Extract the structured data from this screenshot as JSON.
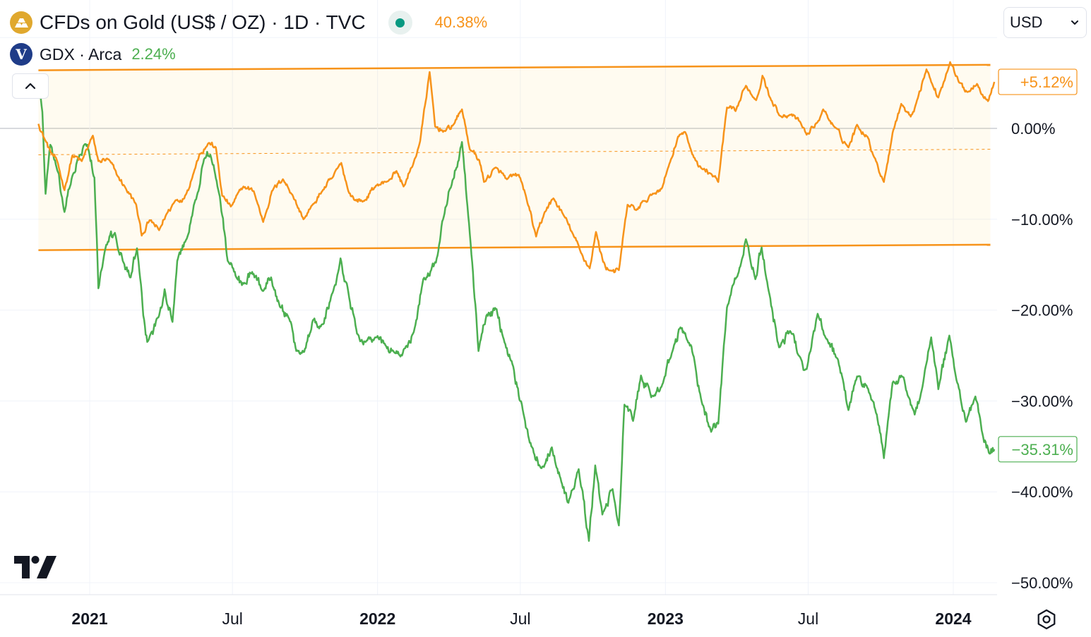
{
  "legend": {
    "series1_title": "CFDs on Gold (US$ / OZ) · 1D · TVC",
    "series1_change": "40.38%",
    "series2_title": "GDX · Arca",
    "series2_change": "2.24%",
    "series2_icon_letter": "V"
  },
  "currency": {
    "label": "USD"
  },
  "icons": {
    "series1": "gold-bars-icon",
    "series2": "vaneck-icon",
    "collapse": "chevron-up-icon",
    "currency_dropdown": "chevron-down-icon",
    "logo": "tradingview-logo-icon",
    "settings": "settings-gear-icon"
  },
  "colors": {
    "gold": "#f7931a",
    "gdx": "#4caf50",
    "status_dot": "#089981"
  },
  "chart_data": {
    "type": "line",
    "y_unit": "% change",
    "y_ticks": [
      "0.00%",
      "−10.00%",
      "−20.00%",
      "−30.00%",
      "−40.00%",
      "−50.00%"
    ],
    "y_tick_values": [
      0,
      -10,
      -20,
      -30,
      -40,
      -50
    ],
    "ylim": [
      -51,
      7
    ],
    "x_range": [
      "2020-10-28",
      "2024-02-22"
    ],
    "x_ticks": [
      {
        "label": "2021",
        "date": "2021-01-01",
        "bold": true
      },
      {
        "label": "Jul",
        "date": "2021-07-01",
        "bold": false
      },
      {
        "label": "2022",
        "date": "2022-01-01",
        "bold": true
      },
      {
        "label": "Jul",
        "date": "2022-07-01",
        "bold": false
      },
      {
        "label": "2023",
        "date": "2023-01-01",
        "bold": true
      },
      {
        "label": "Jul",
        "date": "2023-07-01",
        "bold": false
      },
      {
        "label": "2024",
        "date": "2024-01-01",
        "bold": true
      }
    ],
    "last_value_labels": [
      {
        "series": "CFDs on Gold",
        "text": "+5.12%",
        "value": 5.12
      },
      {
        "series": "GDX",
        "text": "−35.31%",
        "value": -35.31
      }
    ],
    "channel": {
      "upper": {
        "start": [
          "2020-10-28",
          6.4
        ],
        "end": [
          "2024-02-17",
          7.0
        ]
      },
      "lower": {
        "start": [
          "2020-10-28",
          -13.4
        ],
        "end": [
          "2024-02-17",
          -12.8
        ]
      },
      "mid_value": -2.9
    },
    "grid": true,
    "series": [
      {
        "name": "CFDs on Gold",
        "points": [
          [
            "2020-10-28",
            0.5
          ],
          [
            "2020-11-05",
            -1.2
          ],
          [
            "2020-11-12",
            -2.5
          ],
          [
            "2020-11-20",
            -3.4
          ],
          [
            "2020-11-30",
            -6.8
          ],
          [
            "2020-12-10",
            -3.0
          ],
          [
            "2020-12-22",
            -3.6
          ],
          [
            "2021-01-05",
            -0.8
          ],
          [
            "2021-01-12",
            -3.6
          ],
          [
            "2021-01-25",
            -3.4
          ],
          [
            "2021-02-05",
            -5.2
          ],
          [
            "2021-02-15",
            -6.5
          ],
          [
            "2021-03-01",
            -8.4
          ],
          [
            "2021-03-08",
            -11.8
          ],
          [
            "2021-03-18",
            -10.1
          ],
          [
            "2021-03-30",
            -11.2
          ],
          [
            "2021-04-08",
            -9.5
          ],
          [
            "2021-04-20",
            -7.9
          ],
          [
            "2021-05-01",
            -7.7
          ],
          [
            "2021-05-12",
            -5.1
          ],
          [
            "2021-05-20",
            -2.9
          ],
          [
            "2021-06-01",
            -1.6
          ],
          [
            "2021-06-10",
            -2.1
          ],
          [
            "2021-06-18",
            -7.4
          ],
          [
            "2021-06-29",
            -8.6
          ],
          [
            "2021-07-15",
            -6.4
          ],
          [
            "2021-07-28",
            -6.9
          ],
          [
            "2021-08-09",
            -10.3
          ],
          [
            "2021-08-20",
            -6.9
          ],
          [
            "2021-09-03",
            -5.6
          ],
          [
            "2021-09-15",
            -7.3
          ],
          [
            "2021-09-29",
            -10.0
          ],
          [
            "2021-10-12",
            -8.3
          ],
          [
            "2021-10-22",
            -7.0
          ],
          [
            "2021-11-05",
            -5.4
          ],
          [
            "2021-11-16",
            -3.8
          ],
          [
            "2021-11-25",
            -6.9
          ],
          [
            "2021-12-03",
            -7.9
          ],
          [
            "2021-12-15",
            -8.0
          ],
          [
            "2021-12-30",
            -6.3
          ],
          [
            "2022-01-12",
            -5.9
          ],
          [
            "2022-01-25",
            -4.7
          ],
          [
            "2022-02-03",
            -6.4
          ],
          [
            "2022-02-15",
            -4.0
          ],
          [
            "2022-02-24",
            -1.4
          ],
          [
            "2022-03-08",
            6.2
          ],
          [
            "2022-03-15",
            0.2
          ],
          [
            "2022-03-28",
            -0.3
          ],
          [
            "2022-04-08",
            0.5
          ],
          [
            "2022-04-18",
            2.1
          ],
          [
            "2022-04-28",
            -2.3
          ],
          [
            "2022-05-10",
            -3.5
          ],
          [
            "2022-05-16",
            -5.9
          ],
          [
            "2022-05-31",
            -4.3
          ],
          [
            "2022-06-14",
            -5.6
          ],
          [
            "2022-06-29",
            -5.1
          ],
          [
            "2022-07-08",
            -7.4
          ],
          [
            "2022-07-21",
            -11.9
          ],
          [
            "2022-08-01",
            -9.2
          ],
          [
            "2022-08-12",
            -7.7
          ],
          [
            "2022-08-24",
            -9.4
          ],
          [
            "2022-09-05",
            -11.5
          ],
          [
            "2022-09-16",
            -13.7
          ],
          [
            "2022-09-27",
            -15.4
          ],
          [
            "2022-10-05",
            -11.4
          ],
          [
            "2022-10-14",
            -14.7
          ],
          [
            "2022-10-21",
            -15.6
          ],
          [
            "2022-11-03",
            -15.6
          ],
          [
            "2022-11-14",
            -8.4
          ],
          [
            "2022-11-25",
            -9.0
          ],
          [
            "2022-12-05",
            -8.0
          ],
          [
            "2022-12-15",
            -7.3
          ],
          [
            "2022-12-28",
            -6.5
          ],
          [
            "2023-01-06",
            -3.9
          ],
          [
            "2023-01-17",
            -0.9
          ],
          [
            "2023-01-26",
            -0.4
          ],
          [
            "2023-02-06",
            -3.2
          ],
          [
            "2023-02-17",
            -4.5
          ],
          [
            "2023-02-28",
            -5.0
          ],
          [
            "2023-03-09",
            -5.9
          ],
          [
            "2023-03-20",
            2.3
          ],
          [
            "2023-03-31",
            1.9
          ],
          [
            "2023-04-13",
            4.7
          ],
          [
            "2023-04-26",
            3.1
          ],
          [
            "2023-05-04",
            5.8
          ],
          [
            "2023-05-15",
            3.1
          ],
          [
            "2023-05-26",
            1.4
          ],
          [
            "2023-06-08",
            1.5
          ],
          [
            "2023-06-21",
            0.7
          ],
          [
            "2023-06-29",
            -0.7
          ],
          [
            "2023-07-12",
            0.6
          ],
          [
            "2023-07-20",
            2.1
          ],
          [
            "2023-08-02",
            0.3
          ],
          [
            "2023-08-21",
            -2.1
          ],
          [
            "2023-09-01",
            0.4
          ],
          [
            "2023-09-14",
            -0.9
          ],
          [
            "2023-09-25",
            -3.6
          ],
          [
            "2023-10-05",
            -5.9
          ],
          [
            "2023-10-16",
            -0.5
          ],
          [
            "2023-10-27",
            2.7
          ],
          [
            "2023-11-08",
            1.3
          ],
          [
            "2023-11-16",
            3.1
          ],
          [
            "2023-11-28",
            6.5
          ],
          [
            "2023-12-04",
            5.1
          ],
          [
            "2023-12-13",
            3.4
          ],
          [
            "2023-12-28",
            7.3
          ],
          [
            "2024-01-08",
            5.1
          ],
          [
            "2024-01-19",
            4.0
          ],
          [
            "2024-01-31",
            4.9
          ],
          [
            "2024-02-14",
            3.0
          ],
          [
            "2024-02-22",
            5.12
          ]
        ]
      },
      {
        "name": "GDX",
        "points": [
          [
            "2020-10-28",
            5.5
          ],
          [
            "2020-11-02",
            1.8
          ],
          [
            "2020-11-06",
            -7.2
          ],
          [
            "2020-11-12",
            -1.8
          ],
          [
            "2020-11-20",
            -4.3
          ],
          [
            "2020-11-30",
            -9.2
          ],
          [
            "2020-12-07",
            -6.4
          ],
          [
            "2020-12-17",
            -3.3
          ],
          [
            "2020-12-29",
            -1.8
          ],
          [
            "2021-01-07",
            -5.4
          ],
          [
            "2021-01-12",
            -17.6
          ],
          [
            "2021-01-22",
            -12.8
          ],
          [
            "2021-02-02",
            -11.5
          ],
          [
            "2021-02-12",
            -14.6
          ],
          [
            "2021-02-22",
            -16.4
          ],
          [
            "2021-03-02",
            -13.2
          ],
          [
            "2021-03-10",
            -20.6
          ],
          [
            "2021-03-15",
            -23.5
          ],
          [
            "2021-03-30",
            -20.6
          ],
          [
            "2021-04-06",
            -17.7
          ],
          [
            "2021-04-16",
            -21.3
          ],
          [
            "2021-04-22",
            -14.6
          ],
          [
            "2021-05-05",
            -11.9
          ],
          [
            "2021-05-17",
            -7.4
          ],
          [
            "2021-05-26",
            -3.4
          ],
          [
            "2021-06-03",
            -2.9
          ],
          [
            "2021-06-15",
            -7.5
          ],
          [
            "2021-06-25",
            -14.6
          ],
          [
            "2021-07-06",
            -16.4
          ],
          [
            "2021-07-15",
            -17.1
          ],
          [
            "2021-07-26",
            -15.8
          ],
          [
            "2021-08-09",
            -17.9
          ],
          [
            "2021-08-19",
            -16.4
          ],
          [
            "2021-08-30",
            -19.6
          ],
          [
            "2021-09-09",
            -20.6
          ],
          [
            "2021-09-20",
            -24.5
          ],
          [
            "2021-09-30",
            -24.6
          ],
          [
            "2021-10-11",
            -21.1
          ],
          [
            "2021-10-21",
            -21.8
          ],
          [
            "2021-11-05",
            -18.1
          ],
          [
            "2021-11-15",
            -14.3
          ],
          [
            "2021-11-24",
            -17.5
          ],
          [
            "2021-12-06",
            -22.6
          ],
          [
            "2021-12-17",
            -23.5
          ],
          [
            "2021-12-29",
            -23.0
          ],
          [
            "2022-01-12",
            -24.0
          ],
          [
            "2022-01-21",
            -24.5
          ],
          [
            "2022-02-01",
            -25.0
          ],
          [
            "2022-02-16",
            -22.4
          ],
          [
            "2022-02-28",
            -16.6
          ],
          [
            "2022-03-10",
            -15.6
          ],
          [
            "2022-03-18",
            -14.0
          ],
          [
            "2022-03-28",
            -8.7
          ],
          [
            "2022-04-04",
            -6.5
          ],
          [
            "2022-04-18",
            -1.5
          ],
          [
            "2022-04-28",
            -11.6
          ],
          [
            "2022-05-09",
            -24.5
          ],
          [
            "2022-05-19",
            -20.6
          ],
          [
            "2022-06-01",
            -19.9
          ],
          [
            "2022-06-10",
            -23.2
          ],
          [
            "2022-06-20",
            -25.6
          ],
          [
            "2022-07-05",
            -31.4
          ],
          [
            "2022-07-15",
            -35.0
          ],
          [
            "2022-07-28",
            -37.4
          ],
          [
            "2022-08-10",
            -35.1
          ],
          [
            "2022-08-22",
            -38.9
          ],
          [
            "2022-08-31",
            -41.2
          ],
          [
            "2022-09-13",
            -37.5
          ],
          [
            "2022-09-26",
            -45.4
          ],
          [
            "2022-10-04",
            -37.1
          ],
          [
            "2022-10-13",
            -42.5
          ],
          [
            "2022-10-26",
            -39.7
          ],
          [
            "2022-11-03",
            -43.7
          ],
          [
            "2022-11-10",
            -30.4
          ],
          [
            "2022-11-21",
            -32.2
          ],
          [
            "2022-12-01",
            -27.2
          ],
          [
            "2022-12-14",
            -29.6
          ],
          [
            "2022-12-29",
            -28.0
          ],
          [
            "2023-01-10",
            -24.5
          ],
          [
            "2023-01-20",
            -21.9
          ],
          [
            "2023-02-03",
            -24.0
          ],
          [
            "2023-02-15",
            -29.7
          ],
          [
            "2023-02-28",
            -33.4
          ],
          [
            "2023-03-09",
            -32.5
          ],
          [
            "2023-03-20",
            -19.7
          ],
          [
            "2023-04-04",
            -15.8
          ],
          [
            "2023-04-13",
            -12.2
          ],
          [
            "2023-04-25",
            -16.6
          ],
          [
            "2023-05-03",
            -13.1
          ],
          [
            "2023-05-12",
            -17.9
          ],
          [
            "2023-05-25",
            -24.1
          ],
          [
            "2023-06-08",
            -22.3
          ],
          [
            "2023-06-22",
            -25.4
          ],
          [
            "2023-06-29",
            -26.5
          ],
          [
            "2023-07-13",
            -20.4
          ],
          [
            "2023-07-25",
            -23.2
          ],
          [
            "2023-08-08",
            -25.5
          ],
          [
            "2023-08-21",
            -31.0
          ],
          [
            "2023-09-01",
            -27.3
          ],
          [
            "2023-09-13",
            -28.3
          ],
          [
            "2023-09-26",
            -31.5
          ],
          [
            "2023-10-05",
            -36.3
          ],
          [
            "2023-10-16",
            -28.0
          ],
          [
            "2023-10-30",
            -27.4
          ],
          [
            "2023-11-13",
            -31.5
          ],
          [
            "2023-11-22",
            -28.8
          ],
          [
            "2023-12-04",
            -23.0
          ],
          [
            "2023-12-13",
            -28.7
          ],
          [
            "2023-12-27",
            -22.8
          ],
          [
            "2024-01-05",
            -27.7
          ],
          [
            "2024-01-17",
            -32.3
          ],
          [
            "2024-01-29",
            -29.5
          ],
          [
            "2024-02-07",
            -33.6
          ],
          [
            "2024-02-16",
            -35.8
          ],
          [
            "2024-02-22",
            -35.31
          ]
        ]
      }
    ]
  }
}
